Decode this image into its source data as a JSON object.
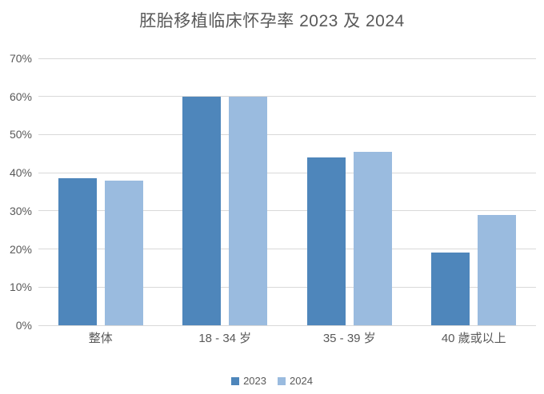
{
  "chart_data": {
    "type": "bar",
    "title": "胚胎移植临床怀孕率 2023 及 2024",
    "categories": [
      "整体",
      "18 - 34 岁",
      "35 - 39 岁",
      "40 歲或以上"
    ],
    "series": [
      {
        "name": "2023",
        "color": "#4E86BB",
        "values": [
          38.5,
          60,
          44,
          19
        ]
      },
      {
        "name": "2024",
        "color": "#9ABBDF",
        "values": [
          38,
          60,
          45.5,
          29
        ]
      }
    ],
    "xlabel": "",
    "ylabel": "",
    "ylim": [
      0,
      70
    ],
    "ytick_step": 10,
    "ytick_labels": [
      "0%",
      "10%",
      "20%",
      "30%",
      "40%",
      "50%",
      "60%",
      "70%"
    ],
    "grid": true,
    "legend_position": "bottom",
    "colors": {
      "text": "#595959",
      "gridline": "#D9D9D9",
      "background": "#FFFFFF"
    }
  }
}
